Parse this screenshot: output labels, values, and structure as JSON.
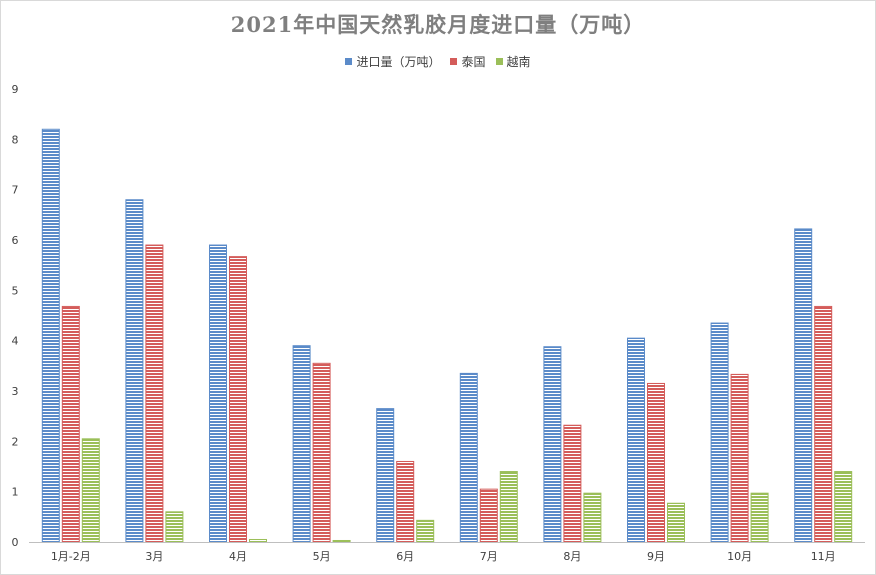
{
  "colors": {
    "series": [
      "#5b8bc9",
      "#d45c5a",
      "#9bbf59"
    ],
    "stripe": [
      "#ffffff",
      "#ffffff",
      "#ffffff"
    ]
  },
  "chart_data": {
    "type": "bar",
    "title": "2021年中国天然乳胶月度进口量（万吨）",
    "categories": [
      "1月-2月",
      "3月",
      "4月",
      "5月",
      "6月",
      "7月",
      "8月",
      "9月",
      "10月",
      "11月"
    ],
    "series": [
      {
        "name": "进口量（万吨）",
        "values": [
          8.2,
          6.8,
          5.9,
          3.9,
          2.65,
          3.35,
          3.88,
          4.05,
          4.35,
          6.22
        ]
      },
      {
        "name": "泰国",
        "values": [
          4.68,
          5.9,
          5.67,
          3.55,
          1.6,
          1.05,
          2.32,
          3.15,
          3.33,
          4.68
        ]
      },
      {
        "name": "越南",
        "values": [
          2.05,
          0.6,
          0.05,
          0.03,
          0.43,
          1.4,
          0.97,
          0.77,
          0.97,
          1.4
        ]
      }
    ],
    "yticks": [
      "0",
      "1",
      "2",
      "3",
      "4",
      "5",
      "6",
      "7",
      "8",
      "9"
    ],
    "ylim": [
      0,
      9
    ],
    "grid": false,
    "legend": "top-center"
  }
}
